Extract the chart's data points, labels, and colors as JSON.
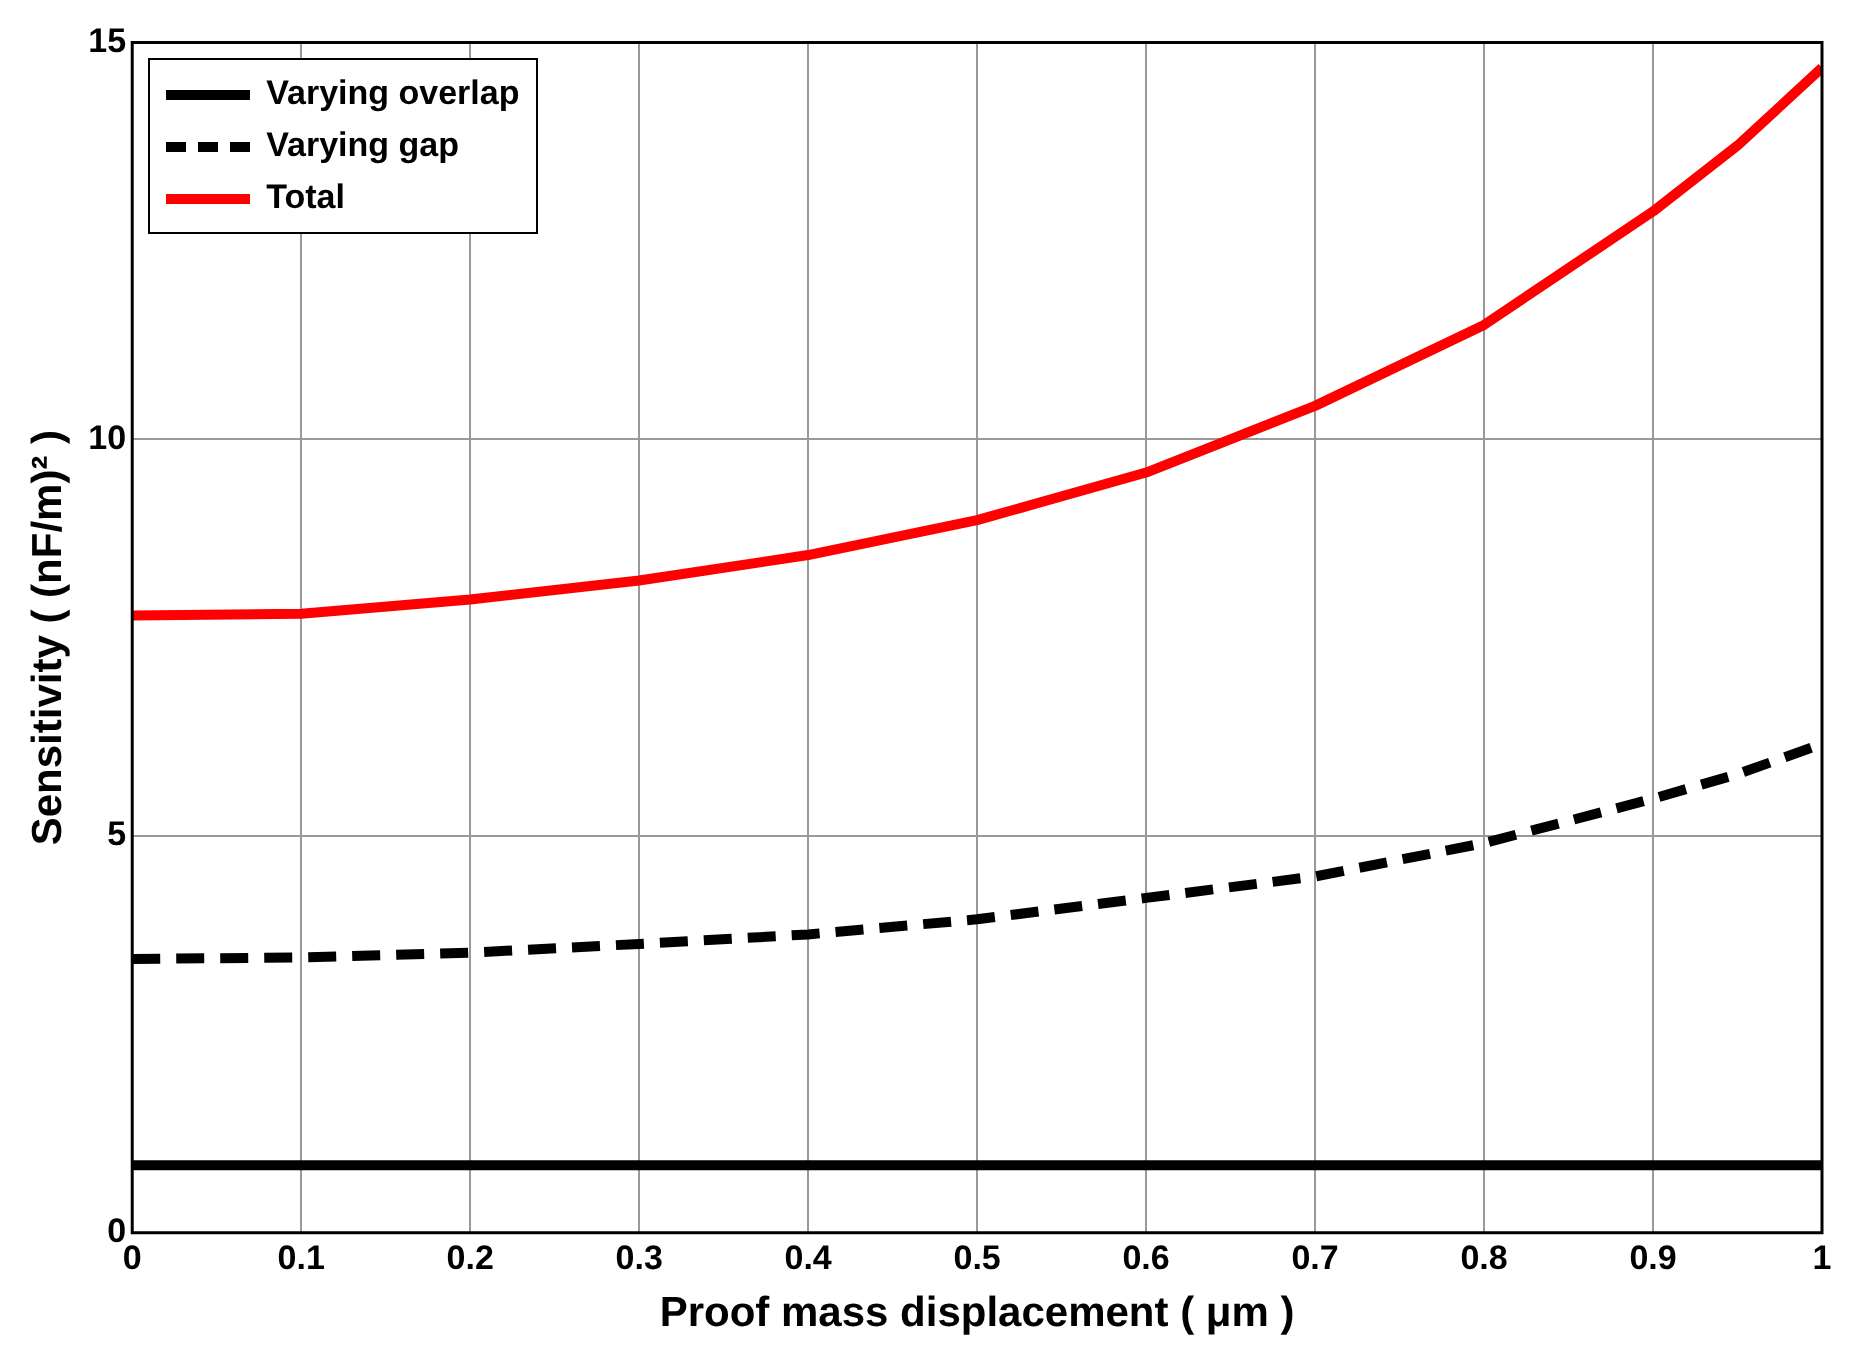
{
  "chart_data": {
    "type": "line",
    "xlabel": "Proof mass displacement ( μm )",
    "ylabel": "Sensitivity ( (nF/m)² )",
    "x": [
      0,
      0.1,
      0.2,
      0.3,
      0.4,
      0.5,
      0.6,
      0.7,
      0.8,
      0.9,
      0.95,
      1
    ],
    "series": [
      {
        "name": "Varying overlap",
        "color": "#000000",
        "line_style": "solid",
        "values": [
          0.85,
          0.85,
          0.85,
          0.85,
          0.85,
          0.85,
          0.85,
          0.85,
          0.85,
          0.85,
          0.85,
          0.85
        ]
      },
      {
        "name": "Varying gap",
        "color": "#000000",
        "line_style": "dashed",
        "values": [
          3.45,
          3.47,
          3.53,
          3.64,
          3.76,
          3.95,
          4.22,
          4.49,
          4.91,
          5.47,
          5.78,
          6.16
        ]
      },
      {
        "name": "Total",
        "color": "#ff0000",
        "line_style": "solid",
        "values": [
          7.78,
          7.8,
          7.98,
          8.22,
          8.54,
          8.98,
          9.58,
          10.42,
          11.44,
          12.87,
          13.7,
          14.68
        ]
      }
    ],
    "xlim": [
      0,
      1
    ],
    "xticks": [
      0,
      0.1,
      0.2,
      0.3,
      0.4,
      0.5,
      0.6,
      0.7,
      0.8,
      0.9,
      1
    ],
    "ylim": [
      0,
      15
    ],
    "yticks": [
      0,
      5,
      10,
      15
    ],
    "grid": true,
    "legend": "top left",
    "marker": "none"
  }
}
